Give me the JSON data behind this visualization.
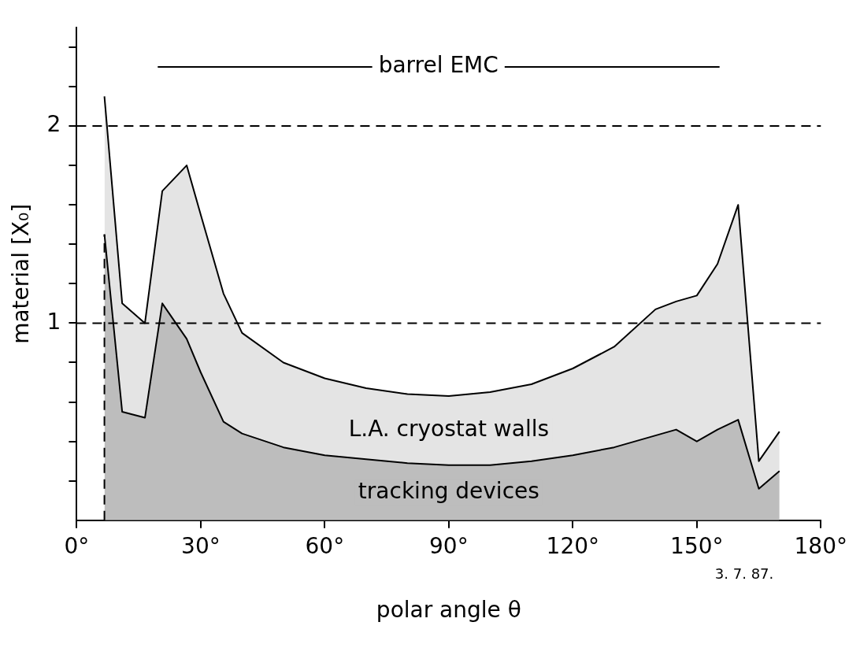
{
  "chart_data": {
    "type": "area",
    "stacked": true,
    "xlabel": "polar angle θ",
    "ylabel": "material [X₀]",
    "x": [
      6.7,
      11,
      16.5,
      20.7,
      26.6,
      30,
      35.5,
      40,
      50,
      60,
      70,
      80,
      90,
      100,
      110,
      120,
      130,
      140,
      145,
      150,
      155,
      160,
      165,
      170
    ],
    "series": [
      {
        "name": "tracking devices",
        "color": "#bdbdbd",
        "values": [
          1.45,
          0.55,
          0.52,
          1.1,
          0.92,
          0.75,
          0.5,
          0.44,
          0.37,
          0.33,
          0.31,
          0.29,
          0.28,
          0.28,
          0.3,
          0.33,
          0.37,
          0.43,
          0.46,
          0.4,
          0.46,
          0.51,
          0.16,
          0.25
        ]
      },
      {
        "name": "L.A. cryostat walls",
        "color": "#e4e4e4",
        "values": [
          0.7,
          0.55,
          0.48,
          0.57,
          0.88,
          0.8,
          0.65,
          0.51,
          0.43,
          0.39,
          0.36,
          0.35,
          0.35,
          0.37,
          0.39,
          0.44,
          0.51,
          0.64,
          0.65,
          0.74,
          0.84,
          1.09,
          0.14,
          0.2
        ]
      },
      {
        "type": "line",
        "color": "#000000",
        "x": [
          19.6,
          155.5
        ],
        "values": [
          2.3,
          2.3
        ]
      }
    ],
    "xlim": [
      0,
      180
    ],
    "xticks": [
      {
        "value": 0,
        "label": "0°"
      },
      {
        "value": 30,
        "label": "30°"
      },
      {
        "value": 60,
        "label": "60°"
      },
      {
        "value": 90,
        "label": "90°"
      },
      {
        "value": 120,
        "label": "120°"
      },
      {
        "value": 150,
        "label": "150°"
      },
      {
        "value": 180,
        "label": "180°"
      }
    ],
    "ylim": [
      0,
      2.5
    ],
    "yticks": [
      {
        "value": 0.2,
        "label": null
      },
      {
        "value": 0.4,
        "label": null
      },
      {
        "value": 0.6,
        "label": null
      },
      {
        "value": 0.8,
        "label": null
      },
      1,
      {
        "value": 1.2,
        "label": null
      },
      {
        "value": 1.4,
        "label": null
      },
      {
        "value": 1.6,
        "label": null
      },
      {
        "value": 1.8,
        "label": null
      },
      2,
      {
        "value": 2.2,
        "label": null
      },
      {
        "value": 2.4,
        "label": null
      }
    ],
    "ref_lines": [
      {
        "axis": "y",
        "value": 2,
        "line_style": "dashed"
      },
      {
        "axis": "y",
        "value": 1,
        "line_style": "dashed"
      },
      {
        "axis": "x",
        "value": 6.7,
        "line_style": "dashed"
      }
    ],
    "annotations": [
      {
        "text": "barrel EMC",
        "x": 87.5,
        "y": 2.3
      },
      "3. 7. 87."
    ],
    "grid": false,
    "legend": false,
    "marker": "none",
    "line_style": "solid"
  }
}
